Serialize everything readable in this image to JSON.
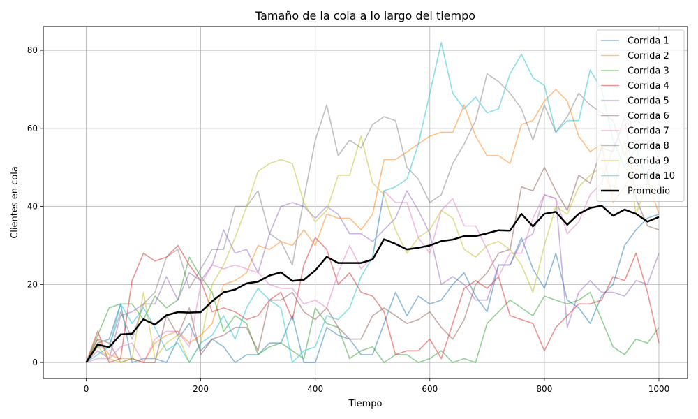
{
  "chart_data": {
    "type": "line",
    "title": "Tamaño de la cola a lo largo del tiempo",
    "xlabel": "Tiempo",
    "ylabel": "Clientes en cola",
    "xlim": [
      -75,
      1050
    ],
    "ylim": [
      -4.1,
      86.1
    ],
    "xticks": [
      0,
      200,
      400,
      600,
      800,
      1000
    ],
    "yticks": [
      0,
      20,
      40,
      60,
      80
    ],
    "grid": true,
    "legend_position": "upper right",
    "x": [
      0,
      20,
      40,
      60,
      80,
      100,
      120,
      140,
      160,
      180,
      200,
      220,
      240,
      260,
      280,
      300,
      320,
      340,
      360,
      380,
      400,
      420,
      440,
      460,
      480,
      500,
      520,
      540,
      560,
      580,
      600,
      620,
      640,
      660,
      680,
      700,
      720,
      740,
      760,
      780,
      800,
      820,
      840,
      860,
      880,
      900,
      920,
      940,
      960,
      980,
      1000
    ],
    "series": [
      {
        "name": "Corrida 1",
        "color": "#1f77b4",
        "alpha": 0.5,
        "width": 1.6,
        "values": [
          0,
          5,
          6,
          15,
          0,
          1,
          1,
          0,
          6,
          10,
          3,
          6,
          4,
          0,
          2,
          2,
          5,
          5,
          12,
          0,
          0,
          9,
          7,
          6,
          2,
          2,
          10,
          18,
          12,
          17,
          15,
          16,
          20,
          23,
          17,
          13,
          25,
          25,
          32,
          24,
          19,
          28,
          16,
          14,
          10,
          17,
          20,
          30,
          34,
          37,
          38
        ]
      },
      {
        "name": "Corrida 2",
        "color": "#ff7f0e",
        "alpha": 0.5,
        "width": 1.6,
        "values": [
          0,
          6,
          2,
          1,
          1,
          0,
          5,
          7,
          8,
          5,
          7,
          10,
          20,
          21,
          23,
          30,
          29,
          31,
          30,
          34,
          30,
          38,
          37,
          37,
          34,
          38,
          52,
          52,
          54,
          56,
          58,
          59,
          59,
          66,
          58,
          53,
          53,
          51,
          61,
          62,
          67,
          70,
          67,
          58,
          54,
          56,
          41,
          45,
          50,
          47,
          38
        ]
      },
      {
        "name": "Corrida 3",
        "color": "#2ca02c",
        "alpha": 0.5,
        "width": 1.6,
        "values": [
          0,
          7,
          14,
          15,
          15,
          11,
          17,
          14,
          16,
          27,
          22,
          18,
          8,
          12,
          10,
          2,
          4,
          5,
          3,
          1,
          14,
          10,
          9,
          1,
          3,
          4,
          0,
          2,
          2,
          0,
          1,
          3,
          0,
          1,
          0,
          10,
          13,
          16,
          14,
          12,
          17,
          16,
          15,
          16,
          18,
          11,
          4,
          2,
          6,
          5,
          9
        ]
      },
      {
        "name": "Corrida 4",
        "color": "#d62728",
        "alpha": 0.5,
        "width": 1.6,
        "values": [
          0,
          8,
          0,
          1,
          21,
          28,
          26,
          27,
          30,
          25,
          21,
          13,
          14,
          13,
          11,
          12,
          16,
          18,
          11,
          25,
          32,
          29,
          20,
          23,
          18,
          17,
          13,
          2,
          3,
          3,
          6,
          1,
          10,
          19,
          21,
          19,
          22,
          12,
          11,
          10,
          3,
          9,
          12,
          15,
          15,
          16,
          22,
          21,
          28,
          18,
          5
        ]
      },
      {
        "name": "Corrida 5",
        "color": "#9467bd",
        "alpha": 0.5,
        "width": 1.6,
        "values": [
          0,
          3,
          1,
          12,
          13,
          15,
          15,
          22,
          16,
          23,
          21,
          25,
          34,
          28,
          29,
          23,
          33,
          40,
          41,
          40,
          37,
          40,
          38,
          33,
          33,
          31,
          34,
          37,
          44,
          39,
          33,
          20,
          22,
          20,
          16,
          16,
          25,
          25,
          31,
          33,
          43,
          42,
          9,
          18,
          21,
          18,
          18,
          17,
          21,
          20,
          28
        ]
      },
      {
        "name": "Corrida 6",
        "color": "#8c564b",
        "alpha": 0.5,
        "width": 1.6,
        "values": [
          0,
          6,
          5,
          0,
          1,
          0,
          0,
          12,
          7,
          14,
          2,
          6,
          7,
          9,
          9,
          3,
          16,
          16,
          18,
          13,
          11,
          14,
          9,
          6,
          6,
          12,
          14,
          12,
          10,
          11,
          13,
          9,
          6,
          11,
          20,
          23,
          28,
          29,
          45,
          44,
          50,
          44,
          39,
          48,
          46,
          55,
          54,
          63,
          42,
          35,
          34
        ]
      },
      {
        "name": "Corrida 7",
        "color": "#e377c2",
        "alpha": 0.5,
        "width": 1.6,
        "values": [
          0,
          1,
          1,
          4,
          5,
          0,
          6,
          8,
          8,
          4,
          20,
          25,
          24,
          25,
          24,
          23,
          20,
          19,
          19,
          15,
          16,
          14,
          23,
          30,
          24,
          27,
          44,
          41,
          41,
          32,
          28,
          39,
          42,
          35,
          35,
          29,
          22,
          28,
          28,
          37,
          43,
          42,
          33,
          36,
          43,
          46,
          55,
          61,
          62,
          60,
          52
        ]
      },
      {
        "name": "Corrida 8",
        "color": "#7f7f7f",
        "alpha": 0.5,
        "width": 1.6,
        "values": [
          0,
          4,
          4,
          13,
          6,
          15,
          18,
          27,
          29,
          19,
          24,
          29,
          29,
          40,
          40,
          44,
          33,
          31,
          25,
          42,
          57,
          66,
          53,
          57,
          55,
          61,
          63,
          62,
          50,
          47,
          41,
          43,
          51,
          56,
          62,
          74,
          72,
          69,
          65,
          57,
          66,
          59,
          63,
          69,
          66,
          64,
          62,
          53,
          57,
          57,
          55
        ]
      },
      {
        "name": "Corrida 9",
        "color": "#bcbd22",
        "alpha": 0.5,
        "width": 1.6,
        "values": [
          0,
          4,
          1,
          0,
          1,
          18,
          1,
          5,
          7,
          0,
          5,
          20,
          25,
          32,
          40,
          49,
          51,
          52,
          51,
          41,
          36,
          39,
          48,
          48,
          58,
          46,
          43,
          34,
          28,
          32,
          34,
          39,
          37,
          29,
          27,
          30,
          31,
          29,
          25,
          18,
          30,
          40,
          38,
          45,
          48,
          50,
          43,
          57,
          38,
          46,
          42
        ]
      },
      {
        "name": "Corrida 10",
        "color": "#17becf",
        "alpha": 0.5,
        "width": 1.6,
        "values": [
          0,
          2,
          4,
          15,
          10,
          14,
          9,
          3,
          5,
          0,
          5,
          7,
          12,
          6,
          14,
          19,
          16,
          14,
          0,
          3,
          4,
          12,
          11,
          14,
          22,
          27,
          44,
          45,
          47,
          56,
          69,
          82,
          69,
          65,
          68,
          64,
          65,
          74,
          79,
          73,
          71,
          59,
          62,
          62,
          75,
          70,
          57,
          50,
          55,
          46,
          51
        ]
      },
      {
        "name": "Promedio",
        "color": "#000000",
        "alpha": 1.0,
        "width": 2.5,
        "values": [
          0,
          4.6,
          3.9,
          7.2,
          7.4,
          11.1,
          9.7,
          12.1,
          12.9,
          12.8,
          12.9,
          15.7,
          18.0,
          18.7,
          20.3,
          20.7,
          22.3,
          23.1,
          20.9,
          21.2,
          23.6,
          27.1,
          25.5,
          25.5,
          25.5,
          26.4,
          31.6,
          30.4,
          29.0,
          29.4,
          30.0,
          31.1,
          31.5,
          32.4,
          32.4,
          33.1,
          33.9,
          33.8,
          38.1,
          34.9,
          38.1,
          38.6,
          35.3,
          38.1,
          39.6,
          40.2,
          37.6,
          39.2,
          38.1,
          36.1,
          37.3
        ]
      }
    ]
  }
}
